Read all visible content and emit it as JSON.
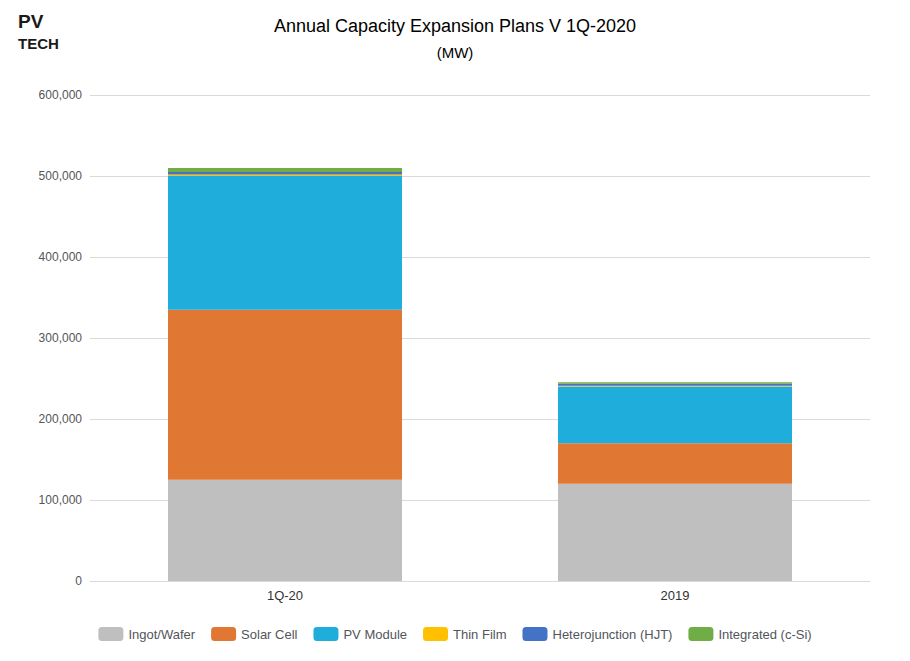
{
  "chart_data": {
    "type": "bar",
    "title": "Annual Capacity Expansion Plans V 1Q-2020",
    "subtitle": "(MW)",
    "annotations": [
      "PV",
      "TECH"
    ],
    "categories": [
      "1Q-20",
      "2019"
    ],
    "series": [
      {
        "name": "Ingot/Wafer",
        "color": "#BFBFBF",
        "values": [
          125000,
          120000
        ]
      },
      {
        "name": "Solar Cell",
        "color": "#E07833",
        "values": [
          210000,
          50000
        ]
      },
      {
        "name": "PV Module",
        "color": "#1FAEDB",
        "values": [
          165000,
          70000
        ]
      },
      {
        "name": "Thin Film",
        "color": "#FFC000",
        "values": [
          2000,
          1000
        ]
      },
      {
        "name": "Heterojunction (HJT)",
        "color": "#4472C4",
        "values": [
          3000,
          2500
        ]
      },
      {
        "name": "Integrated (c-Si)",
        "color": "#70AD47",
        "values": [
          5000,
          2000
        ]
      }
    ],
    "stacked": true,
    "ylim": [
      0,
      600000
    ],
    "yticks": [
      0,
      {
        "value": 100000,
        "label": "100,000"
      },
      {
        "value": 200000,
        "label": "200,000"
      },
      {
        "value": 300000,
        "label": "300,000"
      },
      {
        "value": 400000,
        "label": "400,000"
      },
      {
        "value": 500000,
        "label": "500,000"
      },
      {
        "value": 600000,
        "label": "600,000"
      }
    ],
    "grid": true,
    "legend": "bottom"
  }
}
